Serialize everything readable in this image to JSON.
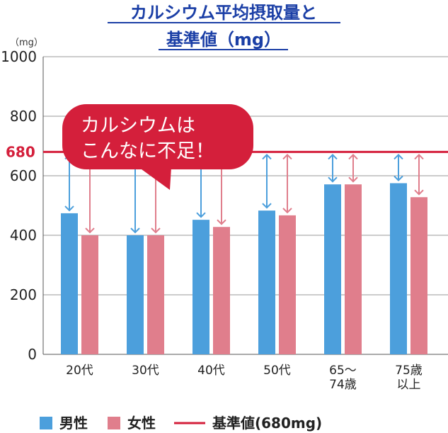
{
  "chart_data": {
    "type": "bar",
    "title_lines": [
      "カルシウム平均摂取量と",
      "基準値（mg）"
    ],
    "y_unit": "（mg）",
    "ylim": [
      0,
      1000
    ],
    "yticks": [
      "0",
      "200",
      "400",
      "600",
      "800",
      "1000"
    ],
    "ytick_values": [
      0,
      200,
      400,
      600,
      800,
      1000
    ],
    "categories": [
      [
        "20代"
      ],
      [
        "30代"
      ],
      [
        "40代"
      ],
      [
        "50代"
      ],
      [
        "65～",
        "74歳"
      ],
      [
        "75歳",
        "以上"
      ]
    ],
    "series": [
      {
        "name": "男性",
        "color": "#4c9fdc",
        "values": [
          474,
          400,
          452,
          483,
          571,
          575
        ]
      },
      {
        "name": "女性",
        "color": "#e07e8c",
        "values": [
          400,
          400,
          428,
          467,
          571,
          528
        ]
      }
    ],
    "reference": {
      "label": "680",
      "value": 680,
      "color": "#d41f3b",
      "legend": "基準値(680mg)"
    },
    "callout": {
      "lines": [
        "カルシウムは",
        "こんなに不足！"
      ],
      "color": "#d41f3b",
      "text_color": "#ffffff"
    },
    "grid": true,
    "legend_position": "bottom-left"
  }
}
